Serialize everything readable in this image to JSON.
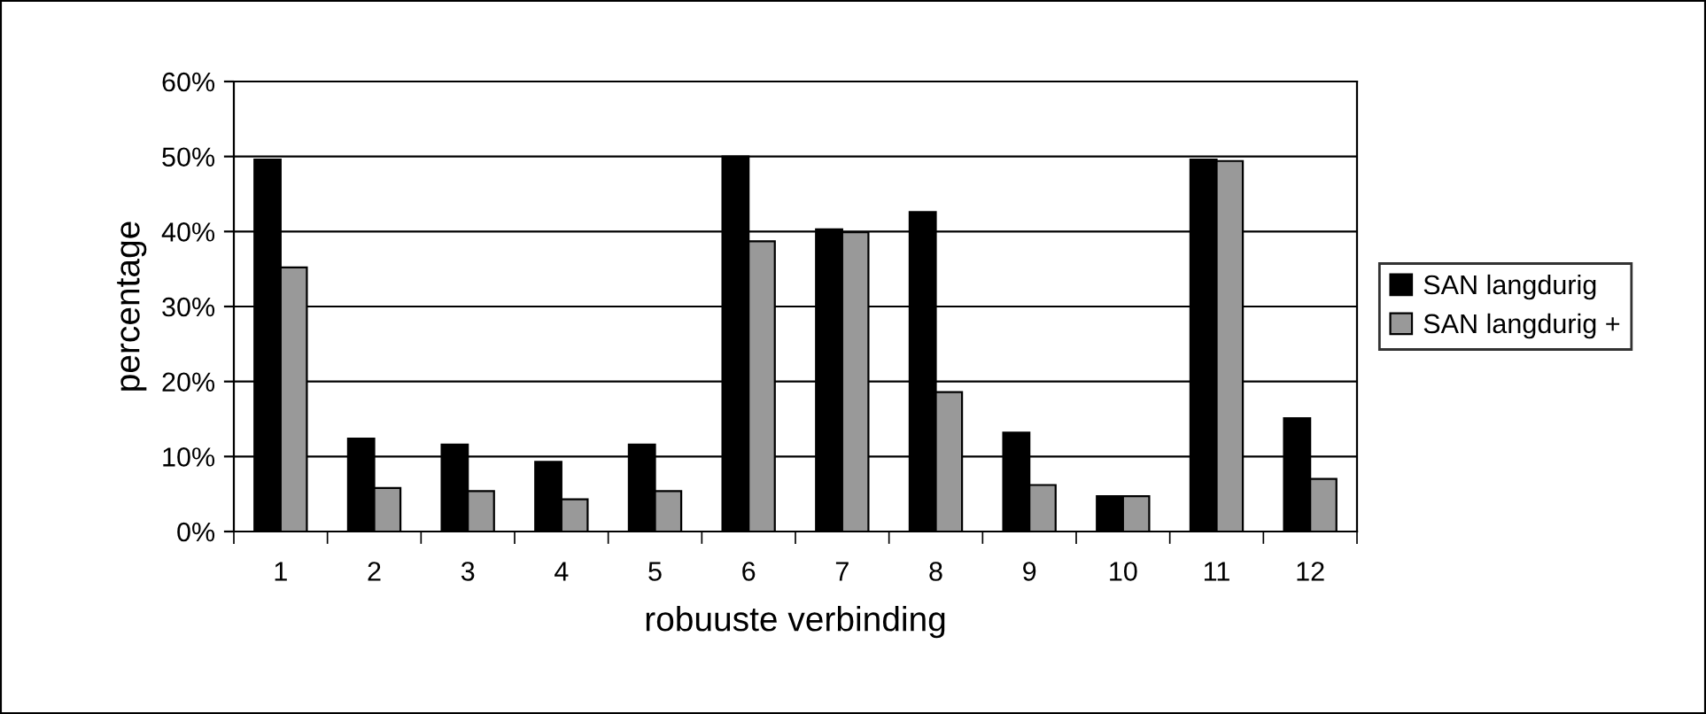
{
  "chart_data": {
    "type": "bar",
    "xlabel": "robuuste verbinding",
    "ylabel": "percentage",
    "categories": [
      "1",
      "2",
      "3",
      "4",
      "5",
      "6",
      "7",
      "8",
      "9",
      "10",
      "11",
      "12"
    ],
    "series": [
      {
        "name": "SAN langdurig",
        "color": "#000000",
        "values": [
          49.6,
          12.4,
          11.6,
          9.3,
          11.6,
          50.0,
          40.3,
          42.6,
          13.2,
          4.7,
          49.6,
          15.1
        ]
      },
      {
        "name": "SAN langdurig +",
        "color": "#999999",
        "values": [
          35.2,
          5.8,
          5.4,
          4.3,
          5.4,
          38.7,
          39.9,
          18.6,
          6.2,
          4.7,
          49.4,
          7.0
        ]
      }
    ],
    "ylim": [
      0,
      60
    ],
    "yticks": [
      {
        "value": 0,
        "label": "0%"
      },
      {
        "value": 10,
        "label": "10%"
      },
      {
        "value": 20,
        "label": "20%"
      },
      {
        "value": 30,
        "label": "30%"
      },
      {
        "value": 40,
        "label": "40%"
      },
      {
        "value": 50,
        "label": "50%"
      },
      {
        "value": 60,
        "label": "60%"
      }
    ],
    "grid": "y",
    "legend": "right"
  }
}
